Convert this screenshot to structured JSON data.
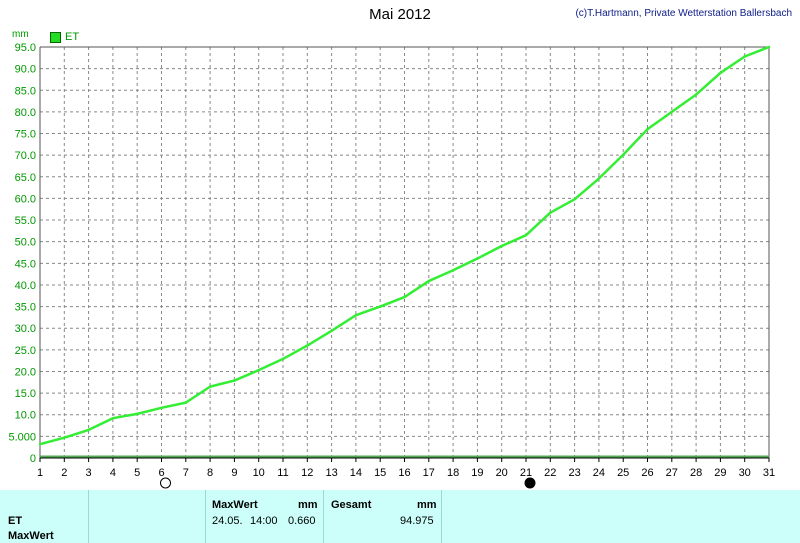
{
  "header": {
    "title": "Mai 2012",
    "copyright": "(c)T.Hartmann, Private Wetterstation Ballersbach",
    "unit": "mm",
    "legend_label": "ET"
  },
  "colors": {
    "series": "#33ee33",
    "baseline": "#55aa55",
    "grid": "#888888",
    "axis_label": "#009900",
    "panel_bg": "#ccfffa"
  },
  "chart_data": {
    "type": "line",
    "title": "Mai 2012",
    "ylabel": "mm",
    "xlim": [
      1,
      31
    ],
    "ylim": [
      0,
      95
    ],
    "x_ticks": [
      1,
      2,
      3,
      4,
      5,
      6,
      7,
      8,
      9,
      10,
      11,
      12,
      13,
      14,
      15,
      16,
      17,
      18,
      19,
      20,
      21,
      22,
      23,
      24,
      25,
      26,
      27,
      28,
      29,
      30,
      31
    ],
    "y_ticks": [
      "0",
      "5.000",
      "10.0",
      "15.0",
      "20.0",
      "25.0",
      "30.0",
      "35.0",
      "40.0",
      "45.0",
      "50.0",
      "55.0",
      "60.0",
      "65.0",
      "70.0",
      "75.0",
      "80.0",
      "85.0",
      "90.0",
      "95.0"
    ],
    "grid": true,
    "legend_position": "top-left",
    "moon_phases": [
      {
        "day": 6,
        "phase": "full-moon"
      },
      {
        "day": 21,
        "phase": "new-moon"
      }
    ],
    "series": [
      {
        "name": "ET",
        "x": [
          1,
          2,
          3,
          4,
          5,
          6,
          7,
          8,
          9,
          10,
          11,
          12,
          13,
          14,
          15,
          16,
          17,
          18,
          19,
          20,
          21,
          22,
          23,
          24,
          25,
          26,
          27,
          28,
          29,
          30,
          31
        ],
        "values": [
          3.2,
          4.7,
          6.5,
          9.2,
          10.2,
          11.6,
          12.8,
          16.5,
          17.9,
          20.3,
          22.9,
          26.0,
          29.4,
          33.0,
          35.0,
          37.2,
          40.9,
          43.4,
          46.1,
          49.0,
          51.5,
          56.7,
          59.8,
          64.6,
          70.1,
          76.0,
          80.0,
          84.0,
          89.0,
          92.8,
          95.0
        ]
      }
    ]
  },
  "panel": {
    "row1_label": "ET",
    "row2_label": "MaxWert",
    "maxwert_header": "MaxWert",
    "maxwert_unit": "mm",
    "maxwert_date": "24.05.",
    "maxwert_time": "14:00",
    "maxwert_value": "0.660",
    "gesamt_header": "Gesamt",
    "gesamt_unit": "mm",
    "gesamt_value": "94.975"
  }
}
